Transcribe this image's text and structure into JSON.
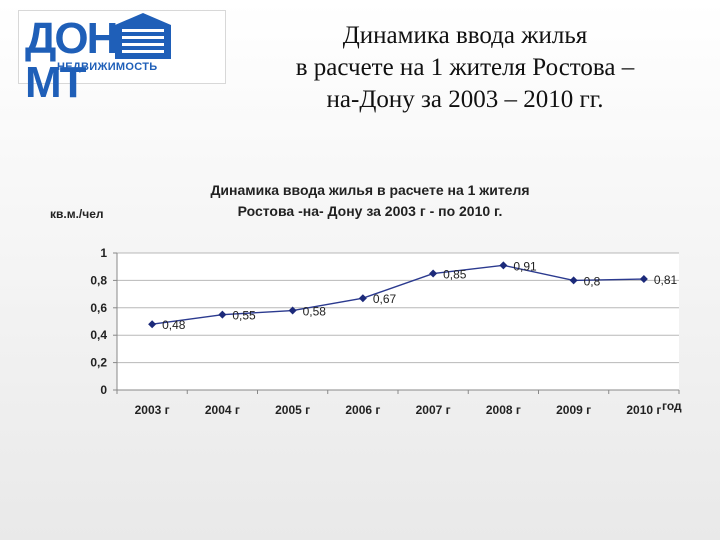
{
  "logo": {
    "main": "ДОН",
    "main_right": "МТ",
    "sub": "НЕДВИЖИМОСТЬ",
    "color": "#1f5fb8"
  },
  "title": {
    "lines": [
      "Динамика ввода жилья",
      "в расчете на 1 жителя Ростова –",
      "на-Дону за 2003 – 2010 гг."
    ]
  },
  "chart_data": {
    "type": "line",
    "title_lines": [
      "Динамика ввода жилья в расчете на 1 жителя",
      "Ростова  -на- Дону за 2003 г - по 2010 г."
    ],
    "ylabel": "кв.м./чел",
    "xlabel": "год",
    "categories": [
      "2003 г",
      "2004 г",
      "2005 г",
      "2006 г",
      "2007 г",
      "2008 г",
      "2009 г",
      "2010 г"
    ],
    "series": [
      {
        "values": [
          0.48,
          0.55,
          0.58,
          0.67,
          0.85,
          0.91,
          0.8,
          0.81
        ],
        "labels": [
          "0,48",
          "0,55",
          "0,58",
          "0,67",
          "0,85",
          "0,91",
          "0,8",
          "0,81"
        ],
        "color": "#2b3a8f"
      }
    ],
    "ylim": [
      0,
      1
    ],
    "yticks": [
      0,
      0.2,
      0.4,
      0.6,
      0.8,
      1
    ],
    "ytick_labels": [
      "0",
      "0,2",
      "0,4",
      "0,6",
      "0,8",
      "1"
    ],
    "grid": true,
    "legend": "none"
  }
}
